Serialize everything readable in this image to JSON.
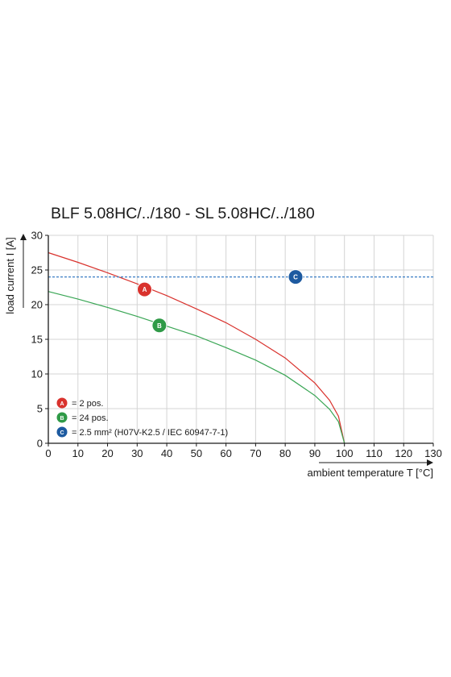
{
  "chart_data": {
    "type": "line",
    "title": "BLF 5.08HC/../180 - SL 5.08HC/../180",
    "xlabel": "ambient temperature T [°C]",
    "ylabel": "load current I [A]",
    "xlim": [
      0,
      130
    ],
    "ylim": [
      0,
      30
    ],
    "x_ticks": [
      "0",
      "10",
      "20",
      "30",
      "40",
      "50",
      "60",
      "70",
      "80",
      "90",
      "100",
      "110",
      "120",
      "130"
    ],
    "y_ticks": [
      "0",
      "5",
      "10",
      "15",
      "20",
      "25",
      "30"
    ],
    "grid": true,
    "legend_position": "bottom-left",
    "series": [
      {
        "key": "A",
        "name": "= 2 pos.",
        "color": "#d9322d",
        "style": "solid",
        "x": [
          0,
          10,
          20,
          30,
          40,
          50,
          60,
          70,
          80,
          90,
          95,
          98,
          100
        ],
        "y": [
          27.5,
          26.1,
          24.6,
          23.0,
          21.3,
          19.4,
          17.4,
          15.0,
          12.3,
          8.7,
          6.2,
          3.9,
          0
        ],
        "marker_label": {
          "x": 32.5,
          "y": 22.2
        }
      },
      {
        "key": "B",
        "name": "= 24 pos.",
        "color": "#3aa655",
        "style": "solid",
        "x": [
          0,
          10,
          20,
          30,
          40,
          50,
          60,
          70,
          80,
          90,
          95,
          98,
          100
        ],
        "y": [
          21.9,
          20.8,
          19.6,
          18.3,
          16.9,
          15.5,
          13.8,
          12.0,
          9.8,
          6.9,
          4.9,
          3.1,
          0
        ],
        "marker_label": {
          "x": 37.5,
          "y": 17.0
        }
      },
      {
        "key": "C",
        "name": "= 2.5 mm² (H07V-K2.5 / IEC 60947-7-1)",
        "color": "#3b7fc4",
        "badge_color": "#1d5aa0",
        "style": "dashed",
        "x": [
          0,
          130
        ],
        "y": [
          24,
          24
        ],
        "marker_label": {
          "x": 83.5,
          "y": 24
        }
      }
    ],
    "badge_colors": {
      "A": "#d9322d",
      "B": "#2f9a47",
      "C": "#1d5aa0"
    }
  }
}
